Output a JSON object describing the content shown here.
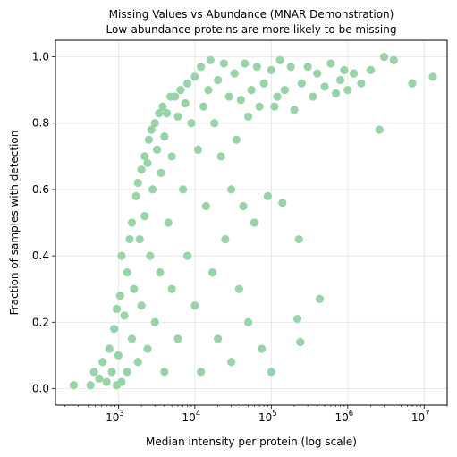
{
  "chart_data": {
    "type": "scatter",
    "title": "Missing Values vs Abundance (MNAR Demonstration)",
    "subtitle": "Low-abundance proteins are more likely to be missing",
    "xlabel": "Median intensity per protein (log scale)",
    "ylabel": "Fraction of samples with detection",
    "xscale": "log",
    "xlim": [
      150,
      20000000
    ],
    "ylim": [
      -0.05,
      1.05
    ],
    "x_ticks": [
      {
        "base": "10",
        "exp": "3",
        "value": 1000
      },
      {
        "base": "10",
        "exp": "4",
        "value": 10000
      },
      {
        "base": "10",
        "exp": "5",
        "value": 100000
      },
      {
        "base": "10",
        "exp": "6",
        "value": 1000000
      },
      {
        "base": "10",
        "exp": "7",
        "value": 10000000
      }
    ],
    "y_ticks": [
      {
        "label": "0.0",
        "value": 0.0
      },
      {
        "label": "0.2",
        "value": 0.2
      },
      {
        "label": "0.4",
        "value": 0.4
      },
      {
        "label": "0.6",
        "value": 0.6
      },
      {
        "label": "0.8",
        "value": 0.8
      },
      {
        "label": "1.0",
        "value": 1.0
      }
    ],
    "grid": true,
    "legend": "none",
    "point_color": "#98d4a8",
    "series": [
      {
        "points": [
          [
            260,
            0.01
          ],
          [
            430,
            0.01
          ],
          [
            480,
            0.05
          ],
          [
            560,
            0.03
          ],
          [
            620,
            0.08
          ],
          [
            700,
            0.02
          ],
          [
            760,
            0.12
          ],
          [
            820,
            0.05
          ],
          [
            880,
            0.18
          ],
          [
            950,
            0.01
          ],
          [
            950,
            0.24
          ],
          [
            1000,
            0.1
          ],
          [
            1050,
            0.28
          ],
          [
            1100,
            0.02
          ],
          [
            1100,
            0.4
          ],
          [
            1200,
            0.22
          ],
          [
            1300,
            0.35
          ],
          [
            1300,
            0.05
          ],
          [
            1400,
            0.45
          ],
          [
            1500,
            0.15
          ],
          [
            1500,
            0.5
          ],
          [
            1600,
            0.3
          ],
          [
            1700,
            0.58
          ],
          [
            1800,
            0.62
          ],
          [
            1800,
            0.08
          ],
          [
            1900,
            0.45
          ],
          [
            2000,
            0.66
          ],
          [
            2000,
            0.25
          ],
          [
            2200,
            0.7
          ],
          [
            2200,
            0.52
          ],
          [
            2400,
            0.68
          ],
          [
            2400,
            0.12
          ],
          [
            2500,
            0.75
          ],
          [
            2600,
            0.4
          ],
          [
            2700,
            0.78
          ],
          [
            2800,
            0.6
          ],
          [
            3000,
            0.8
          ],
          [
            3000,
            0.2
          ],
          [
            3200,
            0.72
          ],
          [
            3400,
            0.83
          ],
          [
            3500,
            0.35
          ],
          [
            3600,
            0.65
          ],
          [
            3800,
            0.85
          ],
          [
            4000,
            0.76
          ],
          [
            4000,
            0.05
          ],
          [
            4300,
            0.83
          ],
          [
            4500,
            0.5
          ],
          [
            4800,
            0.88
          ],
          [
            5000,
            0.7
          ],
          [
            5000,
            0.3
          ],
          [
            5500,
            0.88
          ],
          [
            6000,
            0.82
          ],
          [
            6000,
            0.15
          ],
          [
            6500,
            0.9
          ],
          [
            7000,
            0.6
          ],
          [
            7500,
            0.86
          ],
          [
            8000,
            0.92
          ],
          [
            8000,
            0.4
          ],
          [
            9000,
            0.8
          ],
          [
            10000,
            0.94
          ],
          [
            10000,
            0.25
          ],
          [
            11000,
            0.72
          ],
          [
            12000,
            0.97
          ],
          [
            12000,
            0.05
          ],
          [
            13000,
            0.85
          ],
          [
            14000,
            0.55
          ],
          [
            15000,
            0.9
          ],
          [
            16000,
            0.99
          ],
          [
            17000,
            0.35
          ],
          [
            18000,
            0.8
          ],
          [
            20000,
            0.93
          ],
          [
            20000,
            0.15
          ],
          [
            22000,
            0.7
          ],
          [
            24000,
            0.98
          ],
          [
            25000,
            0.45
          ],
          [
            28000,
            0.88
          ],
          [
            30000,
            0.6
          ],
          [
            30000,
            0.08
          ],
          [
            33000,
            0.95
          ],
          [
            35000,
            0.75
          ],
          [
            38000,
            0.3
          ],
          [
            40000,
            0.87
          ],
          [
            43000,
            0.55
          ],
          [
            45000,
            0.98
          ],
          [
            50000,
            0.82
          ],
          [
            50000,
            0.2
          ],
          [
            55000,
            0.9
          ],
          [
            60000,
            0.5
          ],
          [
            65000,
            0.97
          ],
          [
            70000,
            0.85
          ],
          [
            75000,
            0.12
          ],
          [
            80000,
            0.92
          ],
          [
            90000,
            0.58
          ],
          [
            100000,
            0.96
          ],
          [
            100000,
            0.05
          ],
          [
            110000,
            0.85
          ],
          [
            120000,
            0.88
          ],
          [
            130000,
            0.99
          ],
          [
            140000,
            0.56
          ],
          [
            150000,
            0.9
          ],
          [
            180000,
            0.97
          ],
          [
            200000,
            0.84
          ],
          [
            220000,
            0.21
          ],
          [
            230000,
            0.45
          ],
          [
            240000,
            0.14
          ],
          [
            250000,
            0.92
          ],
          [
            300000,
            0.97
          ],
          [
            350000,
            0.88
          ],
          [
            400000,
            0.95
          ],
          [
            430000,
            0.27
          ],
          [
            500000,
            0.91
          ],
          [
            600000,
            0.98
          ],
          [
            700000,
            0.89
          ],
          [
            800000,
            0.93
          ],
          [
            900000,
            0.96
          ],
          [
            1000000,
            0.9
          ],
          [
            1200000,
            0.95
          ],
          [
            1500000,
            0.92
          ],
          [
            2000000,
            0.96
          ],
          [
            2600000,
            0.78
          ],
          [
            3000000,
            1.0
          ],
          [
            4000000,
            0.99
          ],
          [
            7000000,
            0.92
          ],
          [
            13000000,
            0.94
          ]
        ]
      }
    ]
  }
}
